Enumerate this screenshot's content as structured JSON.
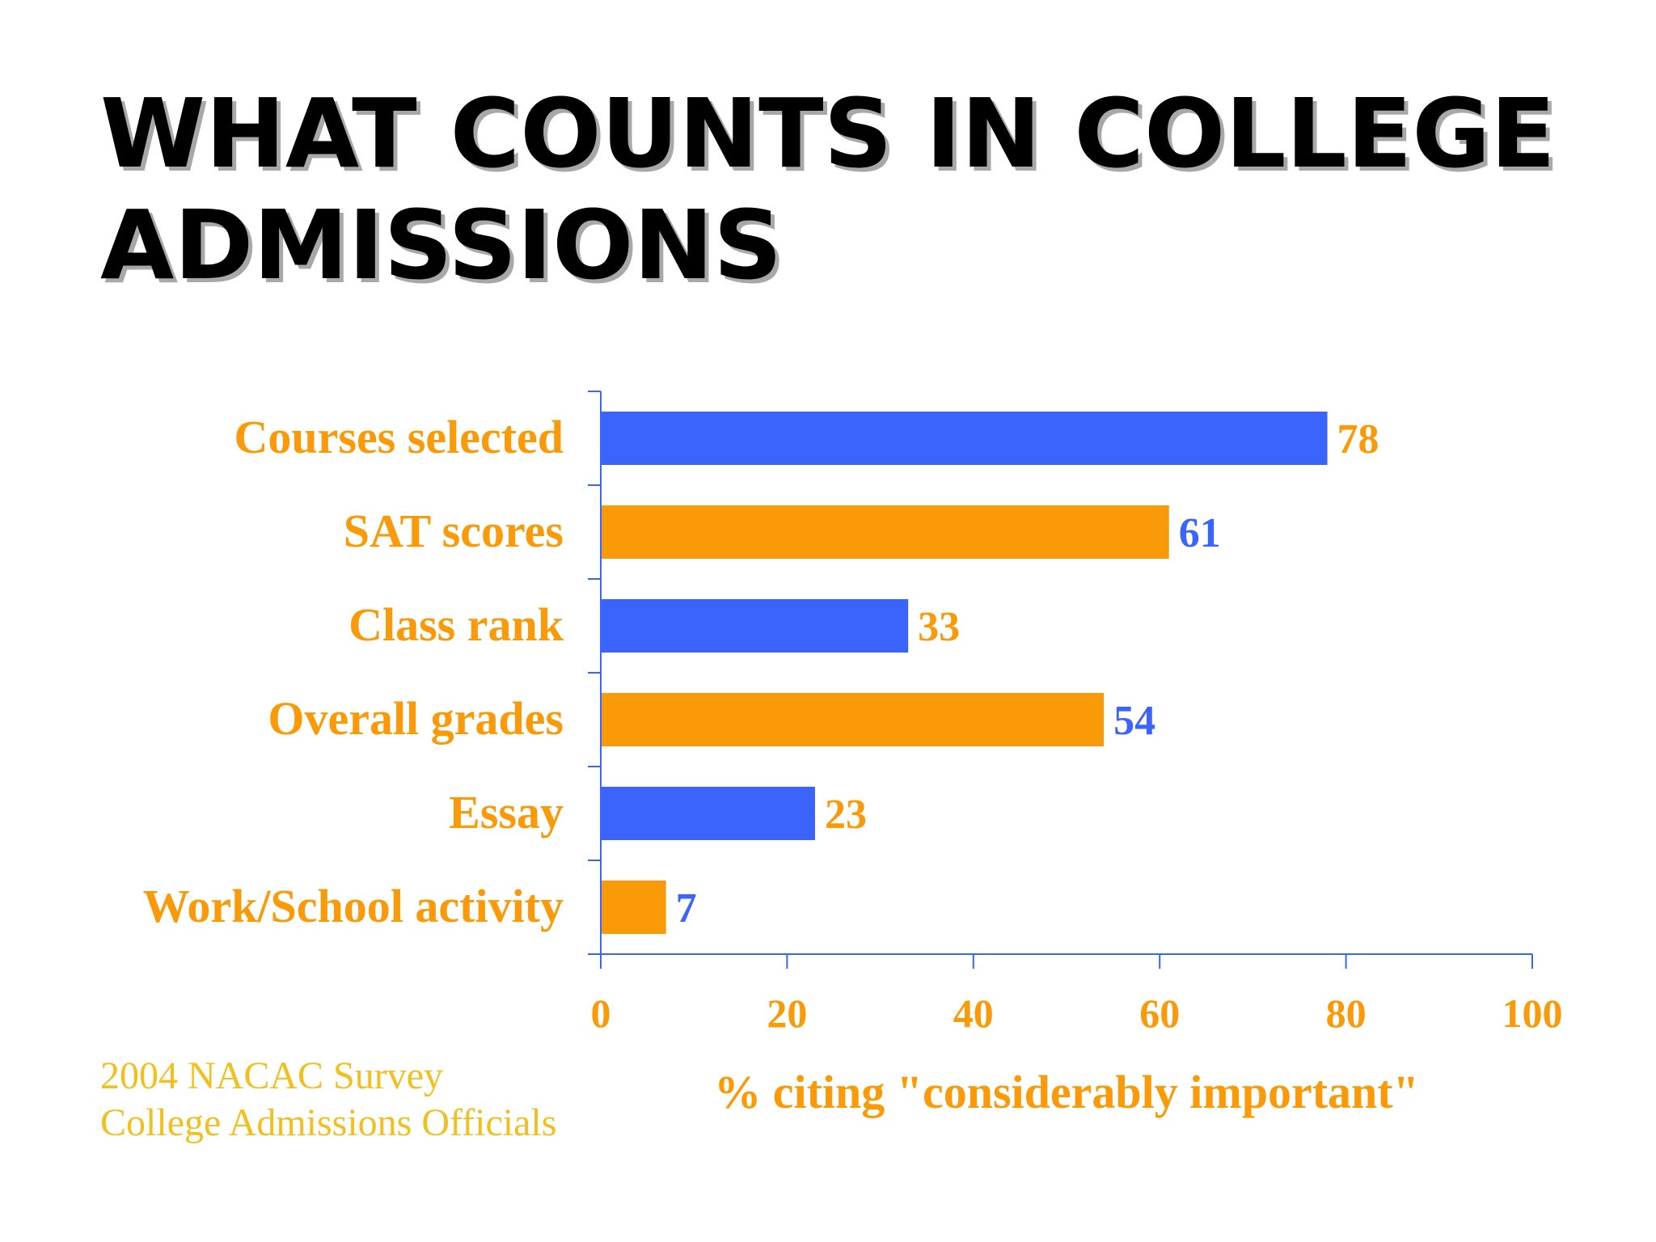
{
  "slide": {
    "title_line1": "WHAT COUNTS IN COLLEGE",
    "title_line2": "ADMISSIONS",
    "source_line1": "2004 NACAC Survey",
    "source_line2": "College Admissions Officials"
  },
  "colors": {
    "blue": "#3a64fb",
    "orange": "#fa9a08",
    "axis": "#3a64fb",
    "source_text": "#f2c01e"
  },
  "chart_data": {
    "type": "bar",
    "orientation": "horizontal",
    "categories": [
      "Courses selected",
      "SAT scores",
      "Class rank",
      "Overall grades",
      "Essay",
      "Work/School activity"
    ],
    "values": [
      78,
      61,
      33,
      54,
      23,
      7
    ],
    "bar_colors": [
      "blue",
      "orange",
      "blue",
      "orange",
      "blue",
      "orange"
    ],
    "label_colors": [
      "orange",
      "blue",
      "orange",
      "blue",
      "orange",
      "blue"
    ],
    "xlabel": "% citing \"considerably important\"",
    "ylabel": "",
    "xlim": [
      0,
      100
    ],
    "xticks": [
      0,
      20,
      40,
      60,
      80,
      100
    ],
    "grid": false,
    "legend": "none"
  }
}
